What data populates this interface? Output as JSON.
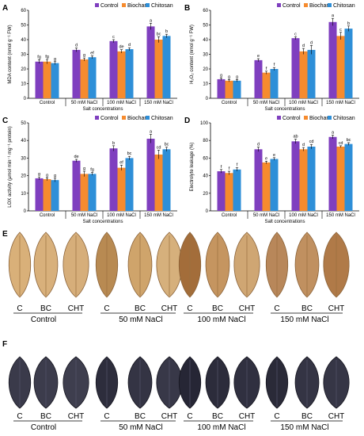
{
  "chart_data": [
    {
      "panel": "A",
      "type": "bar",
      "categories": [
        "Control",
        "50 mM NaCl",
        "100 mM NaCl",
        "150 mM NaCl"
      ],
      "xlabel": "Salt concentrations",
      "ylabel": "MDA content (nmol g⁻¹ FW)",
      "ylim": [
        0,
        60
      ],
      "yticks": [
        0,
        10,
        20,
        30,
        40,
        50,
        60
      ],
      "series": [
        {
          "name": "Control",
          "values": [
            25,
            33,
            39,
            49
          ],
          "errors": [
            1.2,
            1.3,
            1.0,
            2.2
          ],
          "labels": [
            "fg",
            "d",
            "c",
            "a"
          ]
        },
        {
          "name": "Biochar",
          "values": [
            25,
            26.5,
            32,
            40
          ],
          "errors": [
            1.5,
            1.0,
            1.2,
            2.0
          ],
          "labels": [
            "fg",
            "g",
            "de",
            "bc"
          ]
        },
        {
          "name": "Chitosan",
          "values": [
            24,
            28,
            33.5,
            42.5
          ],
          "errors": [
            1.0,
            1.0,
            1.0,
            1.2
          ],
          "labels": [
            "g",
            "ef",
            "d",
            "b"
          ]
        }
      ]
    },
    {
      "panel": "B",
      "type": "bar",
      "categories": [
        "Control",
        "50 mM NaCl",
        "100 mM NaCl",
        "150 mM NaCl"
      ],
      "xlabel": "Salt concentrations",
      "ylabel": "H₂O₂ content (nmol g⁻¹ FW)",
      "ylim": [
        0,
        60
      ],
      "yticks": [
        0,
        10,
        20,
        30,
        40,
        50,
        60
      ],
      "series": [
        {
          "name": "Control",
          "values": [
            13,
            26,
            41,
            52
          ],
          "errors": [
            0.8,
            1.0,
            1.0,
            2.5
          ],
          "labels": [
            "g",
            "e",
            "c",
            "a"
          ]
        },
        {
          "name": "Biochar",
          "values": [
            12,
            17.5,
            32,
            42.5
          ],
          "errors": [
            0.8,
            1.0,
            2.0,
            2.5
          ],
          "labels": [
            "g",
            "f",
            "d",
            "c"
          ]
        },
        {
          "name": "Chitosan",
          "values": [
            12,
            20,
            33,
            47.5
          ],
          "errors": [
            0.8,
            1.0,
            3.0,
            1.8
          ],
          "labels": [
            "g",
            "f",
            "d",
            "b"
          ]
        }
      ]
    },
    {
      "panel": "C",
      "type": "bar",
      "categories": [
        "Control",
        "50 mM NaCl",
        "100 mM NaCl",
        "150 mM NaCl"
      ],
      "xlabel": "Salt concentrations",
      "ylabel": "LOX activity (μmol min⁻¹ mg⁻¹ protein)",
      "ylim": [
        0,
        50
      ],
      "yticks": [
        0,
        10,
        20,
        30,
        40,
        50
      ],
      "series": [
        {
          "name": "Control",
          "values": [
            18.5,
            28.5,
            35.5,
            41
          ],
          "errors": [
            0.8,
            0.8,
            1.5,
            2.5
          ],
          "labels": [
            "g",
            "de",
            "b",
            "a"
          ]
        },
        {
          "name": "Biochar",
          "values": [
            18,
            21,
            24.5,
            32
          ],
          "errors": [
            0.8,
            1.5,
            1.5,
            2.5
          ],
          "labels": [
            "g",
            "g",
            "ef",
            "cd"
          ]
        },
        {
          "name": "Chitosan",
          "values": [
            17.5,
            21,
            30,
            35
          ],
          "errors": [
            1.0,
            0.8,
            1.0,
            1.2
          ],
          "labels": [
            "g",
            "fg",
            "bc",
            "bc"
          ]
        }
      ]
    },
    {
      "panel": "D",
      "type": "bar",
      "categories": [
        "Control",
        "50 mM NaCl",
        "100 mM NaCl",
        "150 mM NaCl"
      ],
      "xlabel": "Salt concentrations",
      "ylabel": "Electrolyte leakage (%)",
      "ylim": [
        0,
        100
      ],
      "yticks": [
        0,
        20,
        40,
        60,
        80,
        100
      ],
      "series": [
        {
          "name": "Control",
          "values": [
            45,
            70,
            79,
            84
          ],
          "errors": [
            2.0,
            2.5,
            2.5,
            2.0
          ],
          "labels": [
            "f",
            "d",
            "ab",
            "a"
          ]
        },
        {
          "name": "Biochar",
          "values": [
            43,
            55,
            70,
            73
          ],
          "errors": [
            2.0,
            1.5,
            2.0,
            1.0
          ],
          "labels": [
            "f",
            "e",
            "d",
            "cd"
          ]
        },
        {
          "name": "Chitosan",
          "values": [
            47,
            59,
            73,
            76
          ],
          "errors": [
            2.0,
            1.5,
            2.5,
            1.5
          ],
          "labels": [
            "f",
            "e",
            "cd",
            "bc"
          ]
        }
      ]
    }
  ],
  "colors": {
    "Control": "#7f3fbf",
    "Biochar": "#f68b2e",
    "Chitosan": "#2e8fd8"
  },
  "photo_panels": [
    {
      "panel": "E",
      "groups": [
        {
          "title": "Control",
          "labels": [
            "C",
            "BC",
            "CHT"
          ]
        },
        {
          "title": "50 mM NaCl",
          "labels": [
            "C",
            "BC",
            "CHT"
          ]
        },
        {
          "title": "100 mM NaCl",
          "labels": [
            "C",
            "BC",
            "CHT"
          ]
        },
        {
          "title": "150 mM NaCl",
          "labels": [
            "C",
            "BC",
            "CHT"
          ]
        }
      ],
      "leaf_colors": [
        "#d9b079",
        "#d8b07b",
        "#d6ae7a",
        "#b88a52",
        "#cfa46b",
        "#d6b07c",
        "#a36d3a",
        "#c59560",
        "#cfa673",
        "#b8875a",
        "#c09060",
        "#b07a48"
      ]
    },
    {
      "panel": "F",
      "groups": [
        {
          "title": "Control",
          "labels": [
            "C",
            "BC",
            "CHT"
          ]
        },
        {
          "title": "50 mM NaCl",
          "labels": [
            "C",
            "BC",
            "CHT"
          ]
        },
        {
          "title": "100 mM NaCl",
          "labels": [
            "C",
            "BC",
            "CHT"
          ]
        },
        {
          "title": "150 mM NaCl",
          "labels": [
            "C",
            "BC",
            "CHT"
          ]
        }
      ],
      "leaf_colors": [
        "#3a3a4a",
        "#3c3c4c",
        "#3e3e4e",
        "#2d2d3c",
        "#343444",
        "#383848",
        "#262635",
        "#2c2c3b",
        "#303040",
        "#2a2a38",
        "#343444",
        "#363646"
      ]
    }
  ]
}
